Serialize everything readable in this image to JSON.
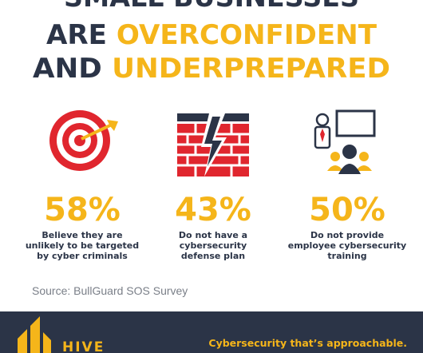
{
  "title": {
    "line1": "SMALL BUSINESSES",
    "line2": [
      "ARE",
      "OVERCONFIDENT"
    ],
    "line3": [
      "AND",
      "UNDERPREPARED"
    ]
  },
  "stats": [
    {
      "value": "58%",
      "lines": [
        "Believe they are",
        "unlikely to be targeted",
        "by cyber criminals"
      ]
    },
    {
      "value": "43%",
      "lines": [
        "Do not have a",
        "cybersecurity",
        "defense plan"
      ]
    },
    {
      "value": "50%",
      "lines": [
        "Do not provide",
        "employee cybersecurity",
        "training"
      ]
    }
  ],
  "source": "Source: BullGuard SOS Survey",
  "footer": {
    "logo": "HIVE",
    "tagline": "Cybersecurity that’s approachable."
  }
}
